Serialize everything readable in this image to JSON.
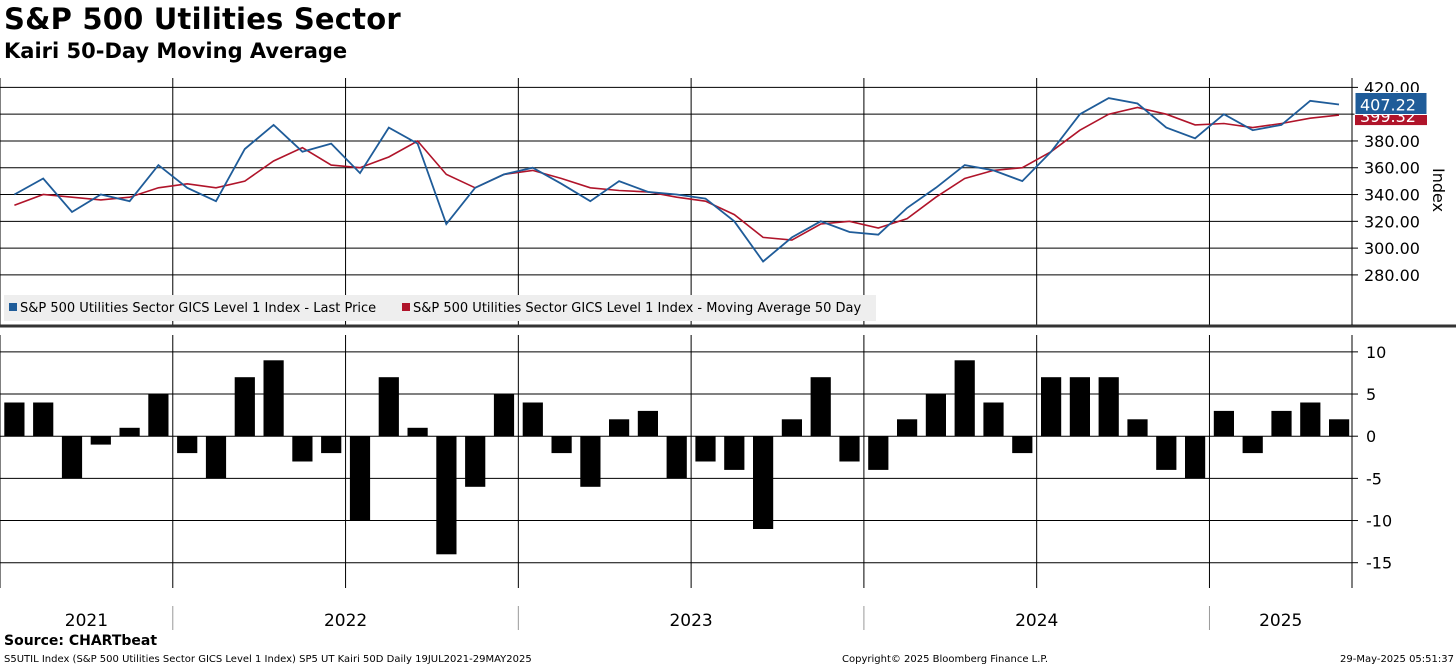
{
  "title": "S&P 500 Utilities Sector",
  "subtitle": "Kairi 50-Day Moving Average",
  "source": "Source: CHARTbeat",
  "footer": {
    "left": "S5UTIL Index (S&P 500 Utilities Sector GICS Level 1 Index) SP5 UT Kairi 50D  Daily 19JUL2021-29MAY2025",
    "center": "Copyright© 2025 Bloomberg Finance L.P.",
    "right": "29-May-2025 05:51:37"
  },
  "colors": {
    "price": "#1f5c99",
    "ma": "#b0142a",
    "kairi": "#000000",
    "grid": "#000000"
  },
  "chart_data": [
    {
      "type": "line",
      "ylabel": "Index",
      "ylim": [
        265,
        427
      ],
      "yticks": [
        "420.00",
        "400.00",
        "380.00",
        "360.00",
        "340.00",
        "320.00",
        "300.00",
        "280.00"
      ],
      "legend": [
        "S&P 500 Utilities Sector GICS Level 1 Index - Last Price",
        "S&P 500 Utilities Sector GICS Level 1 Index - Moving Average 50 Day"
      ],
      "last_value_labels": {
        "price": "407.22",
        "ma": "399.32"
      },
      "x": [
        "2021-07",
        "2021-08",
        "2021-09",
        "2021-10",
        "2021-11",
        "2021-12",
        "2022-01",
        "2022-02",
        "2022-03",
        "2022-04",
        "2022-05",
        "2022-06",
        "2022-07",
        "2022-08",
        "2022-09",
        "2022-10",
        "2022-11",
        "2022-12",
        "2023-01",
        "2023-02",
        "2023-03",
        "2023-04",
        "2023-05",
        "2023-06",
        "2023-07",
        "2023-08",
        "2023-09",
        "2023-10",
        "2023-11",
        "2023-12",
        "2024-01",
        "2024-02",
        "2024-03",
        "2024-04",
        "2024-05",
        "2024-06",
        "2024-07",
        "2024-08",
        "2024-09",
        "2024-10",
        "2024-11",
        "2024-12",
        "2025-01",
        "2025-02",
        "2025-03",
        "2025-04",
        "2025-05"
      ],
      "series": [
        {
          "name": "S&P 500 Utilities Sector GICS Level 1 Index - Last Price",
          "values": [
            340,
            352,
            327,
            340,
            335,
            362,
            345,
            335,
            374,
            392,
            372,
            378,
            356,
            390,
            378,
            318,
            345,
            355,
            360,
            348,
            335,
            350,
            342,
            340,
            337,
            320,
            290,
            308,
            320,
            312,
            310,
            330,
            345,
            362,
            358,
            350,
            372,
            400,
            412,
            408,
            390,
            382,
            400,
            388,
            392,
            410,
            407.22
          ]
        },
        {
          "name": "S&P 500 Utilities Sector GICS Level 1 Index - Moving Average 50 Day",
          "values": [
            332,
            340,
            338,
            336,
            338,
            345,
            348,
            345,
            350,
            365,
            375,
            362,
            360,
            368,
            380,
            355,
            345,
            355,
            358,
            352,
            345,
            343,
            342,
            338,
            335,
            325,
            308,
            306,
            318,
            320,
            315,
            322,
            338,
            352,
            358,
            360,
            372,
            388,
            400,
            405,
            400,
            392,
            393,
            390,
            393,
            397,
            399.32
          ]
        }
      ]
    },
    {
      "type": "bar",
      "ylabel": "Kairi 50-Day Moving Average",
      "ylim": [
        -18,
        12
      ],
      "yticks": [
        "10",
        "5",
        "0",
        "-5",
        "-10",
        "-15"
      ],
      "x": [
        "2021-07",
        "2021-08",
        "2021-09",
        "2021-10",
        "2021-11",
        "2021-12",
        "2022-01",
        "2022-02",
        "2022-03",
        "2022-04",
        "2022-05",
        "2022-06",
        "2022-07",
        "2022-08",
        "2022-09",
        "2022-10",
        "2022-11",
        "2022-12",
        "2023-01",
        "2023-02",
        "2023-03",
        "2023-04",
        "2023-05",
        "2023-06",
        "2023-07",
        "2023-08",
        "2023-09",
        "2023-10",
        "2023-11",
        "2023-12",
        "2024-01",
        "2024-02",
        "2024-03",
        "2024-04",
        "2024-05",
        "2024-06",
        "2024-07",
        "2024-08",
        "2024-09",
        "2024-10",
        "2024-11",
        "2024-12",
        "2025-01",
        "2025-02",
        "2025-03",
        "2025-04",
        "2025-05"
      ],
      "values": [
        4,
        4,
        -5,
        -1,
        1,
        5,
        -2,
        -5,
        7,
        9,
        -3,
        -2,
        -10,
        7,
        1,
        -14,
        -6,
        5,
        4,
        -2,
        -6,
        2,
        3,
        -5,
        -3,
        -4,
        -11,
        2,
        7,
        -3,
        -4,
        2,
        5,
        9,
        4,
        -2,
        7,
        7,
        7,
        2,
        -4,
        -5,
        3,
        -2,
        3,
        4,
        2
      ],
      "x_labels": [
        "2021",
        "2022",
        "2023",
        "2024",
        "2025"
      ]
    }
  ]
}
